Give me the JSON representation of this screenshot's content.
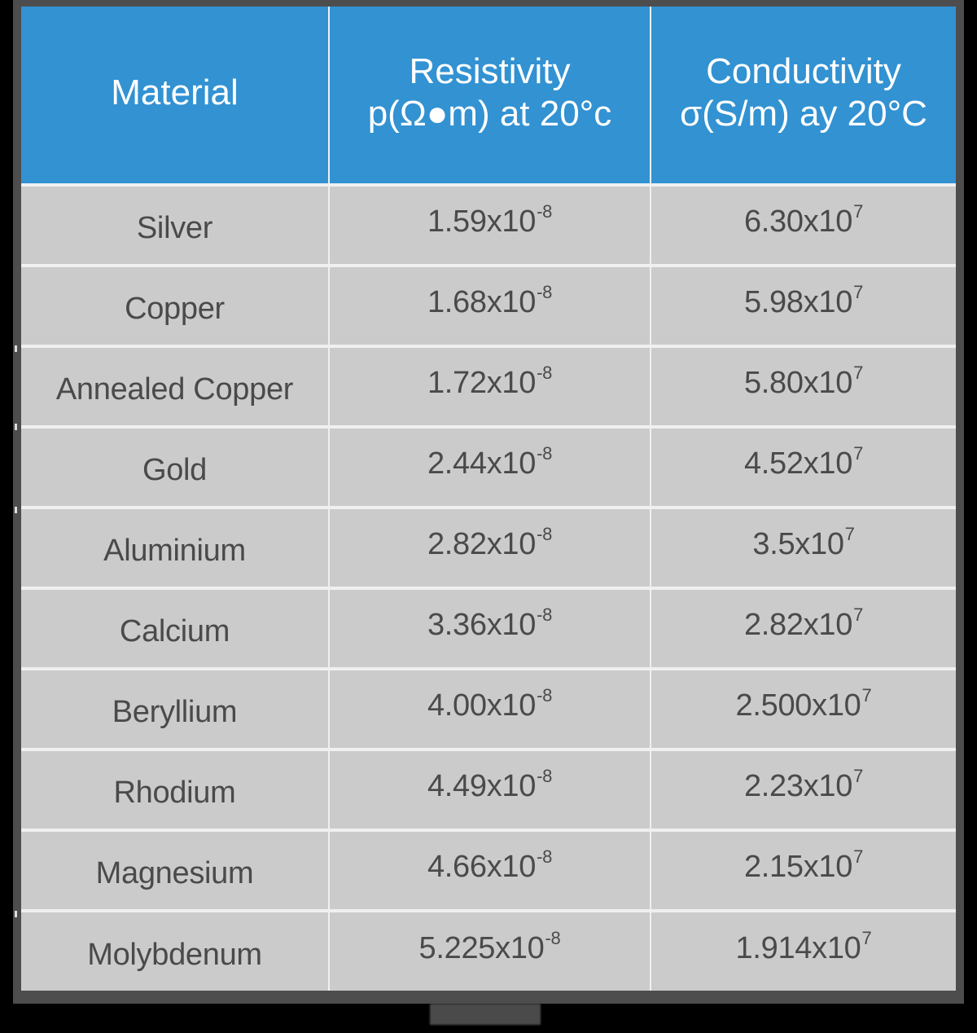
{
  "table": {
    "headers": {
      "material": "Material",
      "resistivity_line1": "Resistivity",
      "resistivity_line2": "p(Ω●m) at 20°c",
      "conductivity_line1": "Conductivity",
      "conductivity_line2": "σ(S/m) ay 20°C"
    },
    "rows": [
      {
        "material": "Silver",
        "resistivity_base": "1.59x10",
        "resistivity_exp": "-8",
        "conductivity_base": "6.30x10",
        "conductivity_exp": "7"
      },
      {
        "material": "Copper",
        "resistivity_base": "1.68x10",
        "resistivity_exp": "-8",
        "conductivity_base": "5.98x10",
        "conductivity_exp": "7"
      },
      {
        "material": "Annealed Copper",
        "resistivity_base": "1.72x10",
        "resistivity_exp": "-8",
        "conductivity_base": "5.80x10",
        "conductivity_exp": "7"
      },
      {
        "material": "Gold",
        "resistivity_base": "2.44x10",
        "resistivity_exp": "-8",
        "conductivity_base": "4.52x10",
        "conductivity_exp": "7"
      },
      {
        "material": "Aluminium",
        "resistivity_base": "2.82x10",
        "resistivity_exp": "-8",
        "conductivity_base": "3.5x10",
        "conductivity_exp": "7"
      },
      {
        "material": "Calcium",
        "resistivity_base": "3.36x10",
        "resistivity_exp": "-8",
        "conductivity_base": "2.82x10",
        "conductivity_exp": "7"
      },
      {
        "material": "Beryllium",
        "resistivity_base": "4.00x10",
        "resistivity_exp": "-8",
        "conductivity_base": "2.500x10",
        "conductivity_exp": "7"
      },
      {
        "material": "Rhodium",
        "resistivity_base": "4.49x10",
        "resistivity_exp": "-8",
        "conductivity_base": "2.23x10",
        "conductivity_exp": "7"
      },
      {
        "material": "Magnesium",
        "resistivity_base": "4.66x10",
        "resistivity_exp": "-8",
        "conductivity_base": "2.15x10",
        "conductivity_exp": "7"
      },
      {
        "material": "Molybdenum",
        "resistivity_base": "5.225x10",
        "resistivity_exp": "-8",
        "conductivity_base": "1.914x10",
        "conductivity_exp": "7"
      }
    ]
  },
  "colors": {
    "header_bg": "#3292d2",
    "header_text": "#ffffff",
    "cell_bg": "#cbcbcb",
    "cell_text": "#4a4a4a",
    "grid_lines": "#f0f0f0",
    "frame": "#4d4d4d",
    "background": "#000000"
  }
}
